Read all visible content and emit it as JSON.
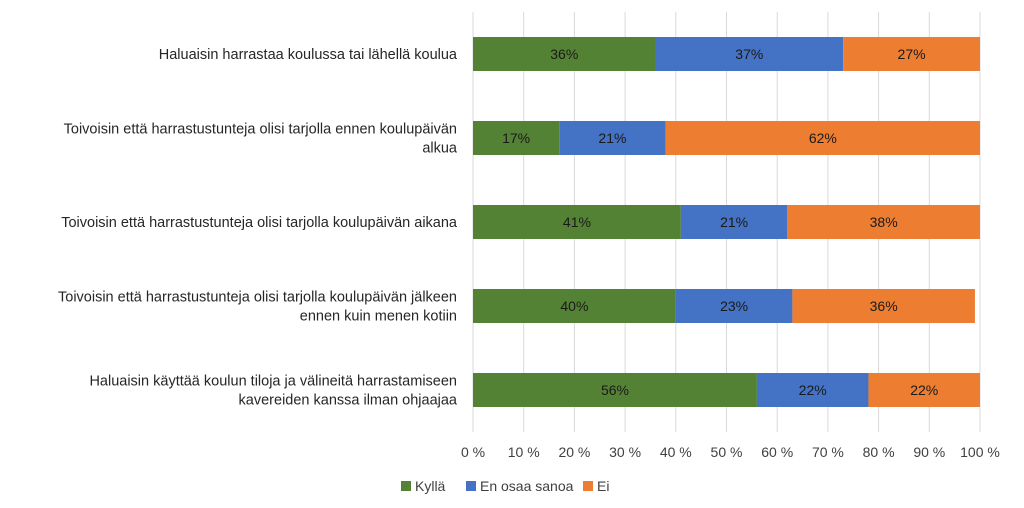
{
  "chart_data": {
    "type": "bar",
    "orientation": "horizontal",
    "stacked": true,
    "percent_stacked": true,
    "categories": [
      [
        "Haluaisin harrastaa koulussa tai lähellä koulua"
      ],
      [
        "Toivoisin että harrastustunteja olisi tarjolla ennen koulupäivän",
        "alkua"
      ],
      [
        "Toivoisin että harrastustunteja olisi tarjolla koulupäivän aikana"
      ],
      [
        "Toivoisin että harrastustunteja olisi tarjolla koulupäivän jälkeen",
        "ennen kuin menen kotiin"
      ],
      [
        "Haluaisin käyttää koulun tiloja ja välineitä harrastamiseen",
        "kavereiden kanssa ilman ohjaajaa"
      ]
    ],
    "series": [
      {
        "name": "Kyllä",
        "color": "#548235",
        "values": [
          36,
          17,
          41,
          40,
          56
        ]
      },
      {
        "name": "En osaa sanoa",
        "color": "#4472C4",
        "values": [
          37,
          21,
          21,
          23,
          22
        ]
      },
      {
        "name": "Ei",
        "color": "#ED7D31",
        "values": [
          27,
          62,
          38,
          36,
          22
        ]
      }
    ],
    "xlim": [
      0,
      100
    ],
    "xticks": [
      "0 %",
      "10 %",
      "20 %",
      "30 %",
      "40 %",
      "50 %",
      "60 %",
      "70 %",
      "80 %",
      "90 %",
      "100 %"
    ],
    "value_suffix": "%",
    "legend_position": "bottom",
    "grid": "vertical",
    "grid_color": "#d9d9d9"
  }
}
